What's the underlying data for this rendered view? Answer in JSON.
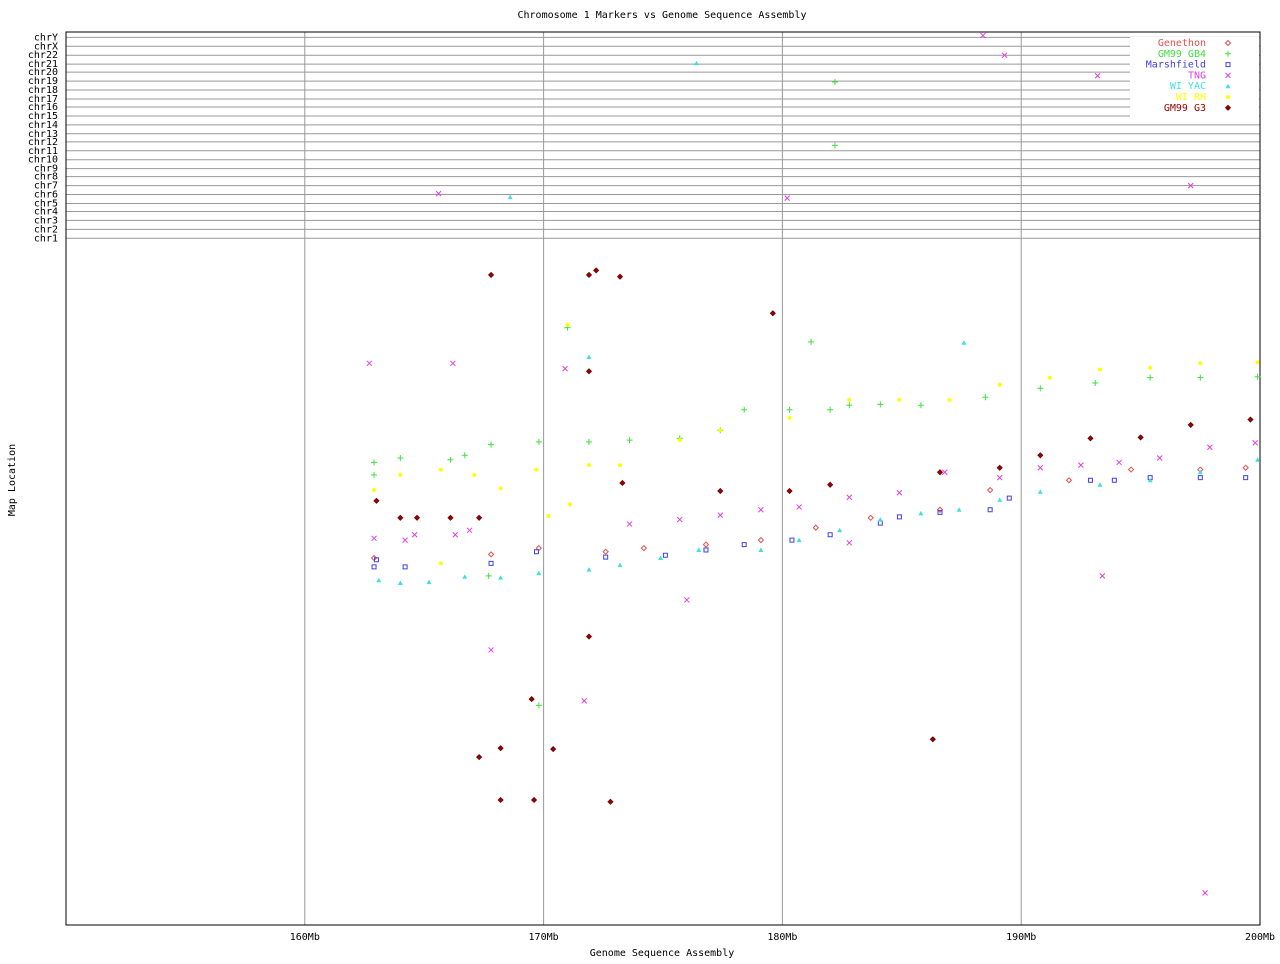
{
  "chart_data": {
    "type": "scatter",
    "title": "Chromosome 1 Markers vs Genome Sequence Assembly",
    "x_label": "Genome Sequence Assembly",
    "y_label": "Map Location",
    "xlim": [
      150,
      200
    ],
    "xticks": [
      {
        "value": 160,
        "label": "160Mb"
      },
      {
        "value": 170,
        "label": "170Mb"
      },
      {
        "value": 180,
        "label": "180Mb"
      },
      {
        "value": 190,
        "label": "190Mb"
      },
      {
        "value": 200,
        "label": "200Mb"
      }
    ],
    "ylim": [
      0,
      100
    ],
    "yticks": [
      {
        "value": 99.4,
        "label": "chrY"
      },
      {
        "value": 98.4,
        "label": "chrX"
      },
      {
        "value": 97.4,
        "label": "chr22"
      },
      {
        "value": 96.4,
        "label": "chr21"
      },
      {
        "value": 95.5,
        "label": "chr20"
      },
      {
        "value": 94.5,
        "label": "chr19"
      },
      {
        "value": 93.5,
        "label": "chr18"
      },
      {
        "value": 92.5,
        "label": "chr17"
      },
      {
        "value": 91.6,
        "label": "chr16"
      },
      {
        "value": 90.6,
        "label": "chr15"
      },
      {
        "value": 89.6,
        "label": "chr14"
      },
      {
        "value": 88.6,
        "label": "chr13"
      },
      {
        "value": 87.7,
        "label": "chr12"
      },
      {
        "value": 86.7,
        "label": "chr11"
      },
      {
        "value": 85.7,
        "label": "chr10"
      },
      {
        "value": 84.7,
        "label": "chr9"
      },
      {
        "value": 83.8,
        "label": "chr8"
      },
      {
        "value": 82.8,
        "label": "chr7"
      },
      {
        "value": 81.8,
        "label": "chr6"
      },
      {
        "value": 80.8,
        "label": "chr5"
      },
      {
        "value": 79.9,
        "label": "chr4"
      },
      {
        "value": 78.9,
        "label": "chr3"
      },
      {
        "value": 77.9,
        "label": "chr2"
      },
      {
        "value": 76.9,
        "label": "chr1"
      }
    ],
    "grid": true,
    "legend_position": "upper right",
    "series": [
      {
        "name": "Genethon",
        "color": "#e05050",
        "marker": "diamond",
        "x": [
          162.9,
          167.8,
          169.8,
          172.6,
          174.2,
          176.8,
          179.1,
          181.4,
          183.7,
          186.6,
          188.7,
          192.0,
          194.6,
          197.5,
          199.4
        ],
        "y": [
          41.1,
          41.5,
          42.2,
          41.8,
          42.2,
          42.6,
          43.1,
          44.5,
          45.6,
          46.5,
          48.7,
          49.8,
          51.0,
          51.0,
          51.2
        ]
      },
      {
        "name": "GM99 GB4",
        "color": "#40e040",
        "marker": "plus",
        "x": [
          162.9,
          162.9,
          164.0,
          166.1,
          166.7,
          167.8,
          169.8,
          171.9,
          173.6,
          175.7,
          177.4,
          178.4,
          180.3,
          182.0,
          182.8,
          184.1,
          185.8,
          188.5,
          190.8,
          193.1,
          195.4,
          197.5,
          199.9,
          171.0,
          181.2,
          182.2,
          182.2,
          169.8,
          167.7
        ],
        "y": [
          51.8,
          50.4,
          52.3,
          52.1,
          52.6,
          53.8,
          54.1,
          54.1,
          54.3,
          54.5,
          55.4,
          57.7,
          57.7,
          57.7,
          58.2,
          58.3,
          58.2,
          59.1,
          60.1,
          60.7,
          61.3,
          61.3,
          61.4,
          66.9,
          65.3,
          87.3,
          94.4,
          24.6,
          39.1
        ]
      },
      {
        "name": "Marshfield",
        "color": "#4040e0",
        "marker": "square",
        "x": [
          162.9,
          163.0,
          164.2,
          167.8,
          169.7,
          172.6,
          175.1,
          176.8,
          178.4,
          180.4,
          182.0,
          184.1,
          184.9,
          186.6,
          188.7,
          189.5,
          192.9,
          193.9,
          195.4,
          197.5,
          199.4
        ],
        "y": [
          40.1,
          40.9,
          40.1,
          40.5,
          41.8,
          41.2,
          41.4,
          42.0,
          42.6,
          43.1,
          43.7,
          45.0,
          45.7,
          46.2,
          46.5,
          47.8,
          49.8,
          49.8,
          50.1,
          50.1,
          50.1
        ]
      },
      {
        "name": "TNG",
        "color": "#e040e0",
        "marker": "cross",
        "x": [
          162.9,
          164.2,
          164.6,
          166.3,
          166.9,
          173.6,
          175.7,
          177.4,
          179.1,
          180.7,
          182.8,
          184.9,
          186.8,
          189.1,
          190.8,
          192.5,
          194.1,
          195.8,
          197.9,
          199.8,
          162.7,
          166.2,
          170.9,
          176.0,
          167.8,
          171.7,
          182.8,
          193.4,
          197.7,
          165.6,
          180.2,
          188.4,
          189.3,
          193.2,
          197.1
        ],
        "y": [
          43.3,
          43.1,
          43.7,
          43.7,
          44.2,
          44.9,
          45.4,
          45.9,
          46.5,
          46.8,
          47.9,
          48.4,
          50.7,
          50.1,
          51.2,
          51.5,
          51.8,
          52.3,
          53.5,
          54.0,
          62.9,
          62.9,
          62.3,
          36.4,
          30.8,
          25.1,
          42.8,
          39.1,
          3.6,
          81.9,
          81.4,
          99.6,
          97.4,
          95.1,
          82.8
        ]
      },
      {
        "name": "WI YAC",
        "color": "#40e0e0",
        "marker": "triangle",
        "x": [
          163.1,
          164.0,
          165.2,
          166.7,
          168.2,
          169.8,
          171.9,
          173.2,
          174.9,
          176.5,
          179.1,
          180.7,
          182.4,
          184.1,
          185.8,
          187.4,
          189.1,
          190.8,
          193.3,
          195.4,
          197.5,
          199.9,
          171.9,
          187.6,
          168.6,
          176.4
        ],
        "y": [
          38.6,
          38.3,
          38.4,
          39.0,
          38.9,
          39.4,
          39.8,
          40.3,
          41.1,
          42.0,
          42.0,
          43.1,
          44.2,
          45.4,
          46.1,
          46.5,
          47.6,
          48.5,
          49.3,
          49.8,
          50.7,
          52.1,
          63.6,
          65.2,
          81.5,
          96.5
        ]
      },
      {
        "name": "WI RH",
        "color": "#ffff00",
        "marker": "dot",
        "x": [
          162.9,
          164.0,
          165.7,
          167.1,
          168.2,
          169.7,
          171.9,
          173.2,
          175.7,
          177.4,
          180.3,
          182.8,
          184.9,
          187.0,
          189.1,
          191.2,
          193.3,
          195.4,
          197.5,
          199.9,
          171.0,
          170.2,
          171.1,
          165.7
        ],
        "y": [
          48.7,
          50.4,
          51.0,
          50.4,
          48.9,
          51.0,
          51.5,
          51.5,
          54.3,
          55.4,
          56.8,
          58.8,
          58.8,
          58.8,
          60.5,
          61.3,
          62.2,
          62.4,
          62.9,
          63.0,
          67.2,
          45.8,
          47.1,
          40.5
        ]
      },
      {
        "name": "GM99 G3",
        "color": "#a00000",
        "marker": "diamond-filled",
        "x": [
          163.0,
          164.0,
          164.7,
          166.1,
          167.3,
          167.8,
          171.9,
          172.2,
          173.2,
          179.6,
          171.9,
          173.3,
          177.4,
          180.3,
          182.0,
          186.6,
          189.1,
          190.8,
          192.9,
          195.0,
          197.1,
          199.6,
          169.5,
          167.3,
          168.2,
          168.2,
          169.6,
          170.4,
          171.9,
          172.8,
          186.3
        ],
        "y": [
          47.5,
          45.6,
          45.6,
          45.6,
          45.6,
          72.8,
          72.8,
          73.3,
          72.6,
          68.5,
          62.0,
          49.5,
          48.6,
          48.6,
          49.3,
          50.7,
          51.2,
          52.6,
          54.5,
          54.6,
          56.0,
          56.6,
          25.3,
          18.8,
          19.8,
          14.0,
          14.0,
          19.7,
          32.3,
          13.8,
          20.8
        ]
      }
    ]
  }
}
